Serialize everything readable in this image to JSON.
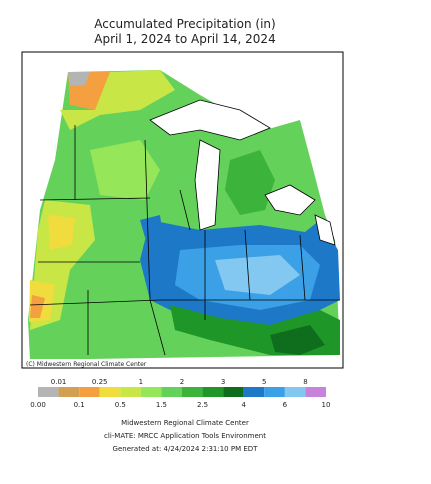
{
  "header": {
    "title": "Accumulated Precipitation (in)",
    "subtitle": "April 1, 2024 to April 14, 2024"
  },
  "map": {
    "credit": "(C) Midwestern Regional Climate Center"
  },
  "legend": {
    "labels": [
      "0.00",
      "0.01",
      "0.1",
      "0.25",
      "0.5",
      "1",
      "1.5",
      "2",
      "2.5",
      "3",
      "4",
      "5",
      "6",
      "8",
      "10"
    ],
    "colors": [
      "#b4b4b4",
      "#d2a050",
      "#f5a040",
      "#f0dc3c",
      "#c8e646",
      "#96e65a",
      "#64d25a",
      "#3cb43c",
      "#1e9628",
      "#0f6e1e",
      "#1e78c8",
      "#3ca0e6",
      "#82c8f0",
      "#c882dc"
    ]
  },
  "footer": {
    "lines": [
      "Midwestern Regional Climate Center",
      "cli-MATE: MRCC Application Tools Environment",
      "Generated at: 4/24/2024 2:31:10 PM EDT"
    ]
  }
}
